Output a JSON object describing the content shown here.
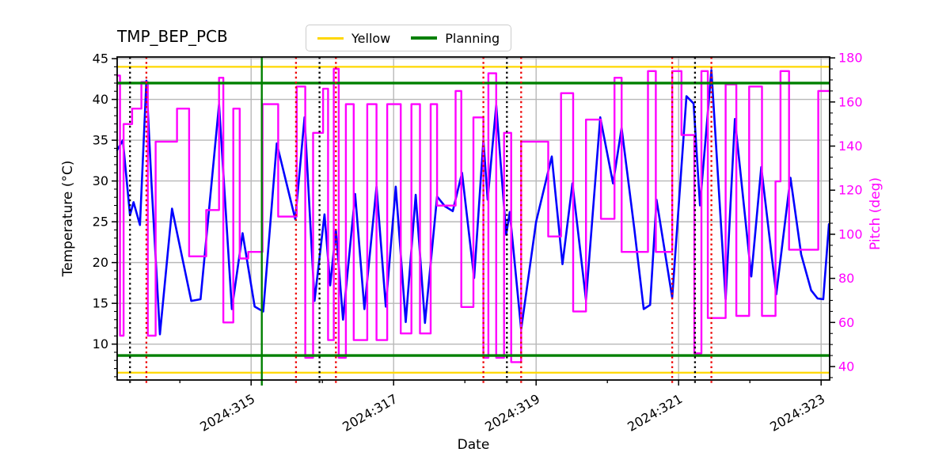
{
  "chart_data": {
    "type": "line",
    "title": "TMP_BEP_PCB",
    "xlabel": "Date",
    "grid": true,
    "grid_color": "#b8b8b8",
    "frame_color": "#000000",
    "xlim": [
      313.12,
      323.12
    ],
    "x_major_ticks": [
      {
        "x": 315,
        "label": "2024:315"
      },
      {
        "x": 317,
        "label": "2024:317"
      },
      {
        "x": 319,
        "label": "2024:319"
      },
      {
        "x": 321,
        "label": "2024:321"
      },
      {
        "x": 323,
        "label": "2024:323"
      }
    ],
    "x_minor_ticks": [
      314,
      316,
      318,
      320,
      322
    ],
    "axes": {
      "left": {
        "label": "Temperature (°C)",
        "lim": [
          5.6,
          45.2
        ],
        "major_ticks": [
          45,
          40,
          35,
          30,
          25,
          20,
          15,
          10
        ],
        "minor_step": 1,
        "color": "#000000"
      },
      "right": {
        "label": "Pitch (deg)",
        "lim": [
          33.9,
          180.4
        ],
        "major_ticks": [
          180,
          160,
          140,
          120,
          100,
          80,
          60,
          40
        ],
        "minor_step": 5,
        "color": "#ff00ff"
      }
    },
    "legend": {
      "position": "top-center",
      "items": [
        {
          "label": "Yellow",
          "color": "#ffd700",
          "lw": 3
        },
        {
          "label": "Planning",
          "color": "#008000",
          "lw": 4
        }
      ]
    },
    "h_lines": [
      {
        "name": "yellow-limit-high",
        "axis": "left",
        "value": 44.0,
        "color": "#ffd700",
        "lw": 2.2,
        "style": "solid"
      },
      {
        "name": "yellow-limit-low",
        "axis": "left",
        "value": 6.5,
        "color": "#ffd700",
        "lw": 2.2,
        "style": "solid"
      },
      {
        "name": "planning-limit-high",
        "axis": "left",
        "value": 42.0,
        "color": "#008000",
        "lw": 3.4,
        "style": "solid"
      },
      {
        "name": "planning-limit-low",
        "axis": "left",
        "value": 8.6,
        "color": "#008000",
        "lw": 3.4,
        "style": "solid"
      }
    ],
    "v_lines": [
      {
        "name": "green-solid-event",
        "x": 315.15,
        "color": "#008000",
        "lw": 2.4,
        "style": "solid"
      },
      {
        "name": "black-dotted-event",
        "x": 313.3,
        "color": "#000000",
        "lw": 2.3,
        "style": "dotted"
      },
      {
        "name": "black-dotted-event",
        "x": 315.96,
        "color": "#000000",
        "lw": 2.3,
        "style": "dotted"
      },
      {
        "name": "black-dotted-event",
        "x": 318.59,
        "color": "#000000",
        "lw": 2.3,
        "style": "dotted"
      },
      {
        "name": "black-dotted-event",
        "x": 321.23,
        "color": "#000000",
        "lw": 2.3,
        "style": "dotted"
      },
      {
        "name": "red-dotted-event",
        "x": 313.53,
        "color": "#ee0000",
        "lw": 2.3,
        "style": "dotted"
      },
      {
        "name": "red-dotted-event",
        "x": 315.63,
        "color": "#ee0000",
        "lw": 2.3,
        "style": "dotted"
      },
      {
        "name": "red-dotted-event",
        "x": 316.19,
        "color": "#ee0000",
        "lw": 2.3,
        "style": "dotted"
      },
      {
        "name": "red-dotted-event",
        "x": 318.26,
        "color": "#ee0000",
        "lw": 2.3,
        "style": "dotted"
      },
      {
        "name": "red-dotted-event",
        "x": 318.79,
        "color": "#ee0000",
        "lw": 2.3,
        "style": "dotted"
      },
      {
        "name": "red-dotted-event",
        "x": 320.91,
        "color": "#ee0000",
        "lw": 2.3,
        "style": "dotted"
      },
      {
        "name": "red-dotted-event",
        "x": 321.46,
        "color": "#ee0000",
        "lw": 2.3,
        "style": "dotted"
      }
    ],
    "series": [
      {
        "name": "temperature",
        "axis": "left",
        "color": "#0000ff",
        "lw": 2.6,
        "style": "line",
        "points": [
          [
            313.12,
            33.8
          ],
          [
            313.2,
            35.0
          ],
          [
            313.3,
            25.8
          ],
          [
            313.35,
            27.4
          ],
          [
            313.44,
            24.6
          ],
          [
            313.53,
            42.3
          ],
          [
            313.6,
            30.0
          ],
          [
            313.72,
            11.2
          ],
          [
            313.89,
            26.6
          ],
          [
            314.16,
            15.3
          ],
          [
            314.29,
            15.5
          ],
          [
            314.55,
            39.4
          ],
          [
            314.73,
            14.3
          ],
          [
            314.88,
            23.6
          ],
          [
            315.05,
            14.6
          ],
          [
            315.17,
            14.0
          ],
          [
            315.36,
            34.6
          ],
          [
            315.62,
            25.3
          ],
          [
            315.75,
            37.8
          ],
          [
            315.89,
            15.3
          ],
          [
            316.03,
            25.9
          ],
          [
            316.11,
            17.2
          ],
          [
            316.19,
            24.0
          ],
          [
            316.29,
            13.0
          ],
          [
            316.46,
            28.4
          ],
          [
            316.59,
            14.3
          ],
          [
            316.76,
            29.3
          ],
          [
            316.89,
            14.6
          ],
          [
            317.03,
            29.3
          ],
          [
            317.17,
            12.7
          ],
          [
            317.31,
            28.3
          ],
          [
            317.44,
            12.6
          ],
          [
            317.61,
            28.1
          ],
          [
            317.72,
            26.9
          ],
          [
            317.83,
            26.3
          ],
          [
            317.96,
            31.0
          ],
          [
            318.13,
            18.1
          ],
          [
            318.26,
            35.0
          ],
          [
            318.32,
            27.7
          ],
          [
            318.44,
            39.3
          ],
          [
            318.58,
            23.4
          ],
          [
            318.63,
            26.2
          ],
          [
            318.79,
            11.8
          ],
          [
            319.0,
            25.0
          ],
          [
            319.22,
            33.0
          ],
          [
            319.37,
            19.8
          ],
          [
            319.51,
            29.7
          ],
          [
            319.7,
            15.4
          ],
          [
            319.9,
            37.8
          ],
          [
            320.08,
            29.7
          ],
          [
            320.2,
            36.5
          ],
          [
            320.38,
            24.0
          ],
          [
            320.51,
            14.3
          ],
          [
            320.6,
            14.8
          ],
          [
            320.69,
            27.7
          ],
          [
            320.91,
            15.7
          ],
          [
            321.11,
            40.4
          ],
          [
            321.21,
            39.5
          ],
          [
            321.3,
            27.0
          ],
          [
            321.46,
            43.6
          ],
          [
            321.66,
            15.5
          ],
          [
            321.79,
            37.6
          ],
          [
            322.02,
            18.3
          ],
          [
            322.16,
            31.7
          ],
          [
            322.37,
            16.1
          ],
          [
            322.57,
            30.4
          ],
          [
            322.72,
            21.0
          ],
          [
            322.86,
            16.6
          ],
          [
            322.95,
            15.6
          ],
          [
            323.03,
            15.5
          ],
          [
            323.11,
            24.7
          ]
        ]
      },
      {
        "name": "pitch",
        "axis": "right",
        "color": "#ff00ff",
        "lw": 2.4,
        "style": "step",
        "points": [
          [
            313.12,
            172
          ],
          [
            313.16,
            54
          ],
          [
            313.21,
            150
          ],
          [
            313.33,
            157
          ],
          [
            313.46,
            169
          ],
          [
            313.55,
            54
          ],
          [
            313.66,
            142
          ],
          [
            313.96,
            157
          ],
          [
            314.13,
            90
          ],
          [
            314.37,
            111
          ],
          [
            314.55,
            171
          ],
          [
            314.61,
            60
          ],
          [
            314.75,
            157
          ],
          [
            314.84,
            89
          ],
          [
            314.96,
            92
          ],
          [
            315.16,
            159
          ],
          [
            315.38,
            108
          ],
          [
            315.64,
            167
          ],
          [
            315.76,
            44
          ],
          [
            315.87,
            146
          ],
          [
            316.01,
            166
          ],
          [
            316.08,
            52
          ],
          [
            316.16,
            175
          ],
          [
            316.23,
            44
          ],
          [
            316.33,
            159
          ],
          [
            316.44,
            52
          ],
          [
            316.63,
            159
          ],
          [
            316.76,
            52
          ],
          [
            316.91,
            159
          ],
          [
            317.1,
            55
          ],
          [
            317.25,
            159
          ],
          [
            317.37,
            55
          ],
          [
            317.52,
            159
          ],
          [
            317.61,
            113
          ],
          [
            317.87,
            165
          ],
          [
            317.95,
            67
          ],
          [
            318.12,
            153
          ],
          [
            318.26,
            44
          ],
          [
            318.33,
            173
          ],
          [
            318.44,
            44
          ],
          [
            318.55,
            146
          ],
          [
            318.65,
            42
          ],
          [
            318.79,
            142
          ],
          [
            319.17,
            99
          ],
          [
            319.35,
            164
          ],
          [
            319.52,
            65
          ],
          [
            319.7,
            152
          ],
          [
            319.91,
            107
          ],
          [
            320.1,
            171
          ],
          [
            320.2,
            92
          ],
          [
            320.57,
            174
          ],
          [
            320.68,
            92
          ],
          [
            320.91,
            174
          ],
          [
            321.04,
            145
          ],
          [
            321.22,
            46
          ],
          [
            321.32,
            174
          ],
          [
            321.41,
            62
          ],
          [
            321.66,
            168
          ],
          [
            321.81,
            63
          ],
          [
            321.99,
            167
          ],
          [
            322.17,
            63
          ],
          [
            322.36,
            124
          ],
          [
            322.43,
            174
          ],
          [
            322.55,
            93
          ],
          [
            322.96,
            165
          ]
        ]
      }
    ]
  }
}
